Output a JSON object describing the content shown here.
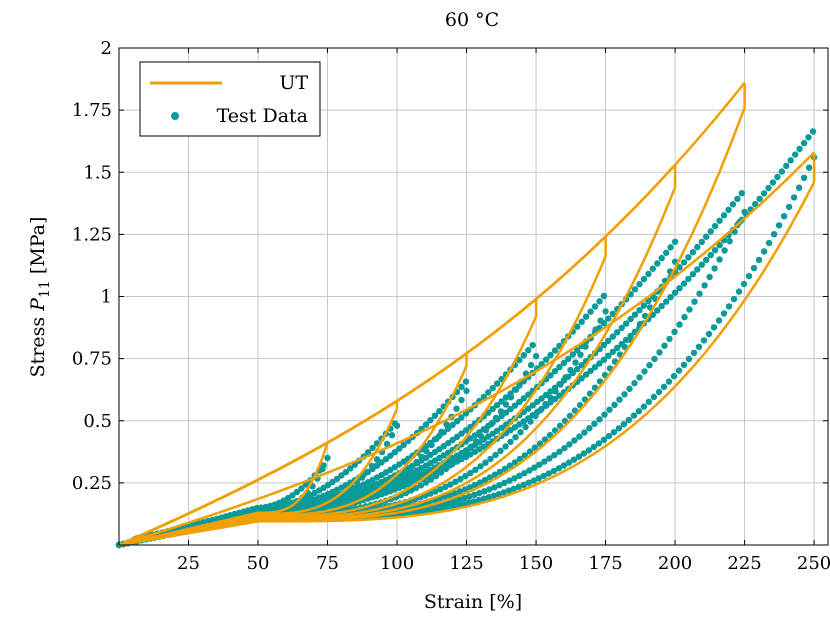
{
  "chart_data": {
    "type": "line",
    "title": "60 °C",
    "xlabel": "Strain [%]",
    "ylabel": "Stress P11 [MPa]",
    "ylabel_main": "Stress ",
    "ylabel_symbol": "P",
    "ylabel_subscript": "11",
    "ylabel_unit": " [MPa]",
    "xlim": [
      0,
      255
    ],
    "ylim": [
      0,
      2
    ],
    "xticks": [
      25,
      50,
      75,
      100,
      125,
      150,
      175,
      200,
      225,
      250
    ],
    "yticks": [
      0.25,
      0.5,
      0.75,
      1,
      1.25,
      1.5,
      1.75,
      2
    ],
    "xtick_labels": [
      "25",
      "50",
      "75",
      "100",
      "125",
      "150",
      "175",
      "200",
      "225",
      "250"
    ],
    "ytick_labels": [
      "0.25",
      "0.5",
      "0.75",
      "1",
      "1.25",
      "1.5",
      "1.75",
      "2"
    ],
    "grid": true,
    "legend_position": "top-left",
    "series": [
      {
        "name": "UT",
        "style": "line",
        "color": "#f0a000"
      },
      {
        "name": "Test Data",
        "style": "markers",
        "color": "#0a9a9a"
      }
    ],
    "cycles": [
      {
        "max_strain": 75,
        "peak_stress": 0.34,
        "unload_drop": 0.0,
        "unloaded_stress_at_50": 0.13
      },
      {
        "max_strain": 100,
        "peak_stress": 0.5,
        "unload_drop": 0.03,
        "unloaded_stress_at_50": 0.125
      },
      {
        "max_strain": 125,
        "peak_stress": 0.66,
        "unload_drop": 0.05,
        "unloaded_stress_at_50": 0.12
      },
      {
        "max_strain": 150,
        "peak_stress": 0.82,
        "unload_drop": 0.07,
        "unloaded_stress_at_50": 0.115
      },
      {
        "max_strain": 175,
        "peak_stress": 1.01,
        "unload_drop": 0.08,
        "unloaded_stress_at_50": 0.11
      },
      {
        "max_strain": 200,
        "peak_stress": 1.22,
        "unload_drop": 0.09,
        "unloaded_stress_at_50": 0.105
      },
      {
        "max_strain": 225,
        "peak_stress": 1.43,
        "unload_drop": 0.1,
        "unloaded_stress_at_50": 0.1
      },
      {
        "max_strain": 250,
        "peak_stress": 1.67,
        "model_peak_stress": 1.58,
        "unload_drop": 0.12,
        "unloaded_stress_at_50": 0.095
      }
    ]
  }
}
